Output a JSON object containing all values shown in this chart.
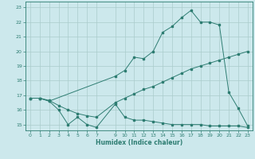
{
  "xlabel": "Humidex (Indice chaleur)",
  "bg_color": "#cce8ec",
  "grid_color": "#aacccc",
  "line_color": "#2e7d72",
  "xlim": [
    -0.5,
    23.5
  ],
  "ylim": [
    14.6,
    23.4
  ],
  "xticks": [
    0,
    1,
    2,
    3,
    4,
    5,
    6,
    7,
    9,
    10,
    11,
    12,
    13,
    14,
    15,
    16,
    17,
    18,
    19,
    20,
    21,
    22,
    23
  ],
  "yticks": [
    15,
    16,
    17,
    18,
    19,
    20,
    21,
    22,
    23
  ],
  "line1_x": [
    0,
    1,
    2,
    3,
    4,
    5,
    6,
    7,
    9,
    10,
    11,
    12,
    13,
    14,
    15,
    16,
    17,
    18,
    19,
    20,
    21,
    22,
    23
  ],
  "line1_y": [
    16.8,
    16.8,
    16.6,
    16.0,
    15.0,
    15.5,
    15.0,
    14.8,
    16.4,
    15.5,
    15.3,
    15.3,
    15.2,
    15.1,
    15.0,
    15.0,
    15.0,
    15.0,
    14.9,
    14.9,
    14.9,
    14.9,
    14.8
  ],
  "line2_x": [
    0,
    1,
    2,
    9,
    10,
    11,
    12,
    13,
    14,
    15,
    16,
    17,
    18,
    19,
    20,
    21,
    22,
    23
  ],
  "line2_y": [
    16.8,
    16.8,
    16.6,
    18.3,
    18.7,
    19.6,
    19.5,
    20.0,
    21.3,
    21.7,
    22.3,
    22.8,
    22.0,
    22.0,
    21.8,
    17.2,
    16.1,
    14.9
  ],
  "line3_x": [
    0,
    1,
    2,
    3,
    4,
    5,
    6,
    7,
    9,
    10,
    11,
    12,
    13,
    14,
    15,
    16,
    17,
    18,
    19,
    20,
    21,
    22,
    23
  ],
  "line3_y": [
    16.8,
    16.8,
    16.65,
    16.3,
    16.0,
    15.75,
    15.6,
    15.5,
    16.5,
    16.8,
    17.1,
    17.4,
    17.6,
    17.9,
    18.2,
    18.5,
    18.8,
    19.0,
    19.2,
    19.4,
    19.6,
    19.8,
    20.0
  ]
}
